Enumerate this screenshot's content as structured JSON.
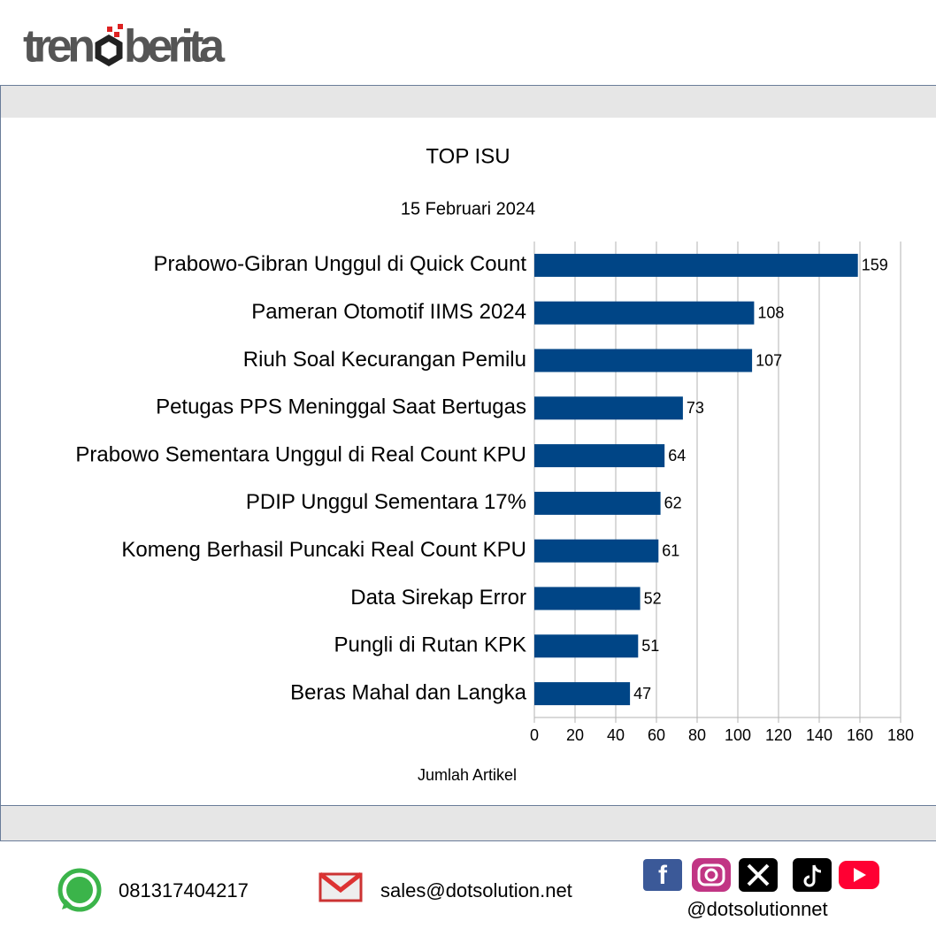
{
  "logo": {
    "left": "tren",
    "right": "berita"
  },
  "chart_data": {
    "type": "hbar",
    "title": "TOP ISU",
    "subtitle": "15 Februari 2024",
    "x_label": "Jumlah Artikel",
    "categories": [
      "Prabowo-Gibran Unggul di Quick Count",
      "Pameran Otomotif IIMS 2024",
      "Riuh Soal Kecurangan Pemilu",
      "Petugas PPS Meninggal Saat Bertugas",
      "Prabowo Sementara Unggul di Real Count KPU",
      "PDIP Unggul Sementara 17%",
      "Komeng Berhasil Puncaki Real Count KPU",
      "Data Sirekap Error",
      "Pungli di Rutan KPK",
      "Beras Mahal dan Langka"
    ],
    "values": [
      159,
      108,
      107,
      73,
      64,
      62,
      61,
      52,
      51,
      47
    ],
    "color": "#004586",
    "xlim": [
      0,
      180
    ],
    "xticks": [
      0,
      20,
      40,
      60,
      80,
      100,
      120,
      140,
      160,
      180
    ],
    "grid": true
  },
  "footer": {
    "phone": "081317404217",
    "email": "sales@dotsolution.net",
    "social_handle": "@dotsolutionnet"
  }
}
